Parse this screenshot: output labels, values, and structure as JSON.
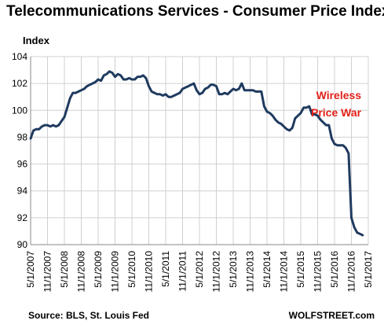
{
  "chart_data": {
    "type": "line",
    "title": "Telecommunications Services - Consumer Price Index",
    "ylabel": "Index",
    "xlabel": "",
    "ylim": [
      90,
      104
    ],
    "grid": true,
    "y_ticks": [
      90,
      92,
      94,
      96,
      98,
      100,
      102,
      104
    ],
    "x_ticks": [
      "5/1/2007",
      "11/1/2007",
      "5/1/2008",
      "11/1/2008",
      "5/1/2009",
      "11/1/2009",
      "5/1/2010",
      "11/1/2010",
      "5/1/2011",
      "11/1/2011",
      "5/1/2012",
      "11/1/2012",
      "5/1/2013",
      "11/1/2013",
      "5/1/2014",
      "11/1/2014",
      "5/1/2015",
      "11/1/2015",
      "5/1/2016",
      "11/1/2016",
      "5/1/2017"
    ],
    "x_range": [
      "2007-05-01",
      "2017-05-01"
    ],
    "series": [
      {
        "color": "#1f3a5f",
        "points": [
          [
            "2007-05-01",
            97.9
          ],
          [
            "2007-06-01",
            98.5
          ],
          [
            "2007-07-01",
            98.6
          ],
          [
            "2007-08-01",
            98.6
          ],
          [
            "2007-09-01",
            98.8
          ],
          [
            "2007-10-01",
            98.9
          ],
          [
            "2007-11-01",
            98.9
          ],
          [
            "2007-12-01",
            98.8
          ],
          [
            "2008-01-01",
            98.9
          ],
          [
            "2008-02-01",
            98.8
          ],
          [
            "2008-03-01",
            98.9
          ],
          [
            "2008-04-01",
            99.2
          ],
          [
            "2008-05-01",
            99.5
          ],
          [
            "2008-06-01",
            100.2
          ],
          [
            "2008-07-01",
            100.9
          ],
          [
            "2008-08-01",
            101.3
          ],
          [
            "2008-09-01",
            101.3
          ],
          [
            "2008-10-01",
            101.4
          ],
          [
            "2008-11-01",
            101.5
          ],
          [
            "2008-12-01",
            101.6
          ],
          [
            "2009-01-01",
            101.8
          ],
          [
            "2009-02-01",
            101.9
          ],
          [
            "2009-03-01",
            102.0
          ],
          [
            "2009-04-01",
            102.1
          ],
          [
            "2009-05-01",
            102.3
          ],
          [
            "2009-06-01",
            102.2
          ],
          [
            "2009-07-01",
            102.6
          ],
          [
            "2009-08-01",
            102.7
          ],
          [
            "2009-09-01",
            102.9
          ],
          [
            "2009-10-01",
            102.8
          ],
          [
            "2009-11-01",
            102.5
          ],
          [
            "2009-12-01",
            102.7
          ],
          [
            "2010-01-01",
            102.6
          ],
          [
            "2010-02-01",
            102.3
          ],
          [
            "2010-03-01",
            102.3
          ],
          [
            "2010-04-01",
            102.4
          ],
          [
            "2010-05-01",
            102.3
          ],
          [
            "2010-06-01",
            102.3
          ],
          [
            "2010-07-01",
            102.5
          ],
          [
            "2010-08-01",
            102.5
          ],
          [
            "2010-09-01",
            102.6
          ],
          [
            "2010-10-01",
            102.4
          ],
          [
            "2010-11-01",
            101.8
          ],
          [
            "2010-12-01",
            101.4
          ],
          [
            "2011-01-01",
            101.3
          ],
          [
            "2011-02-01",
            101.2
          ],
          [
            "2011-03-01",
            101.2
          ],
          [
            "2011-04-01",
            101.1
          ],
          [
            "2011-05-01",
            101.2
          ],
          [
            "2011-06-01",
            101.0
          ],
          [
            "2011-07-01",
            101.0
          ],
          [
            "2011-08-01",
            101.1
          ],
          [
            "2011-09-01",
            101.2
          ],
          [
            "2011-10-01",
            101.3
          ],
          [
            "2011-11-01",
            101.6
          ],
          [
            "2011-12-01",
            101.7
          ],
          [
            "2012-01-01",
            101.8
          ],
          [
            "2012-02-01",
            101.9
          ],
          [
            "2012-03-01",
            102.0
          ],
          [
            "2012-04-01",
            101.5
          ],
          [
            "2012-05-01",
            101.2
          ],
          [
            "2012-06-01",
            101.3
          ],
          [
            "2012-07-01",
            101.6
          ],
          [
            "2012-08-01",
            101.7
          ],
          [
            "2012-09-01",
            101.9
          ],
          [
            "2012-10-01",
            101.9
          ],
          [
            "2012-11-01",
            101.8
          ],
          [
            "2012-12-01",
            101.2
          ],
          [
            "2013-01-01",
            101.2
          ],
          [
            "2013-02-01",
            101.3
          ],
          [
            "2013-03-01",
            101.2
          ],
          [
            "2013-04-01",
            101.4
          ],
          [
            "2013-05-01",
            101.6
          ],
          [
            "2013-06-01",
            101.5
          ],
          [
            "2013-07-01",
            101.6
          ],
          [
            "2013-08-01",
            102.0
          ],
          [
            "2013-09-01",
            101.5
          ],
          [
            "2013-10-01",
            101.5
          ],
          [
            "2013-11-01",
            101.5
          ],
          [
            "2013-12-01",
            101.5
          ],
          [
            "2014-01-01",
            101.4
          ],
          [
            "2014-02-01",
            101.4
          ],
          [
            "2014-03-01",
            101.4
          ],
          [
            "2014-04-01",
            100.3
          ],
          [
            "2014-05-01",
            99.9
          ],
          [
            "2014-06-01",
            99.8
          ],
          [
            "2014-07-01",
            99.6
          ],
          [
            "2014-08-01",
            99.3
          ],
          [
            "2014-09-01",
            99.1
          ],
          [
            "2014-10-01",
            99.0
          ],
          [
            "2014-11-01",
            98.8
          ],
          [
            "2014-12-01",
            98.6
          ],
          [
            "2015-01-01",
            98.5
          ],
          [
            "2015-02-01",
            98.7
          ],
          [
            "2015-03-01",
            99.4
          ],
          [
            "2015-04-01",
            99.6
          ],
          [
            "2015-05-01",
            99.8
          ],
          [
            "2015-06-01",
            100.2
          ],
          [
            "2015-07-01",
            100.2
          ],
          [
            "2015-08-01",
            100.3
          ],
          [
            "2015-09-01",
            99.7
          ],
          [
            "2015-10-01",
            99.7
          ],
          [
            "2015-11-01",
            99.6
          ],
          [
            "2015-12-01",
            99.3
          ],
          [
            "2016-01-01",
            99.1
          ],
          [
            "2016-02-01",
            98.9
          ],
          [
            "2016-03-01",
            98.9
          ],
          [
            "2016-04-01",
            97.9
          ],
          [
            "2016-05-01",
            97.5
          ],
          [
            "2016-06-01",
            97.4
          ],
          [
            "2016-07-01",
            97.4
          ],
          [
            "2016-08-01",
            97.4
          ],
          [
            "2016-09-01",
            97.2
          ],
          [
            "2016-10-01",
            96.8
          ],
          [
            "2016-11-01",
            92.0
          ],
          [
            "2016-12-01",
            91.3
          ],
          [
            "2017-01-01",
            90.9
          ],
          [
            "2017-02-01",
            90.8
          ],
          [
            "2017-03-01",
            90.7
          ]
        ]
      }
    ],
    "annotation": {
      "lines": [
        "Wireless",
        "Price War"
      ],
      "color": "#e32119"
    },
    "source": "Source: BLS, St. Louis Fed",
    "brand": "WOLFSTREET.com",
    "colors": {
      "line": "#1f3a5f",
      "grid": "#d0d0d0",
      "annotation": "#e32119"
    }
  }
}
